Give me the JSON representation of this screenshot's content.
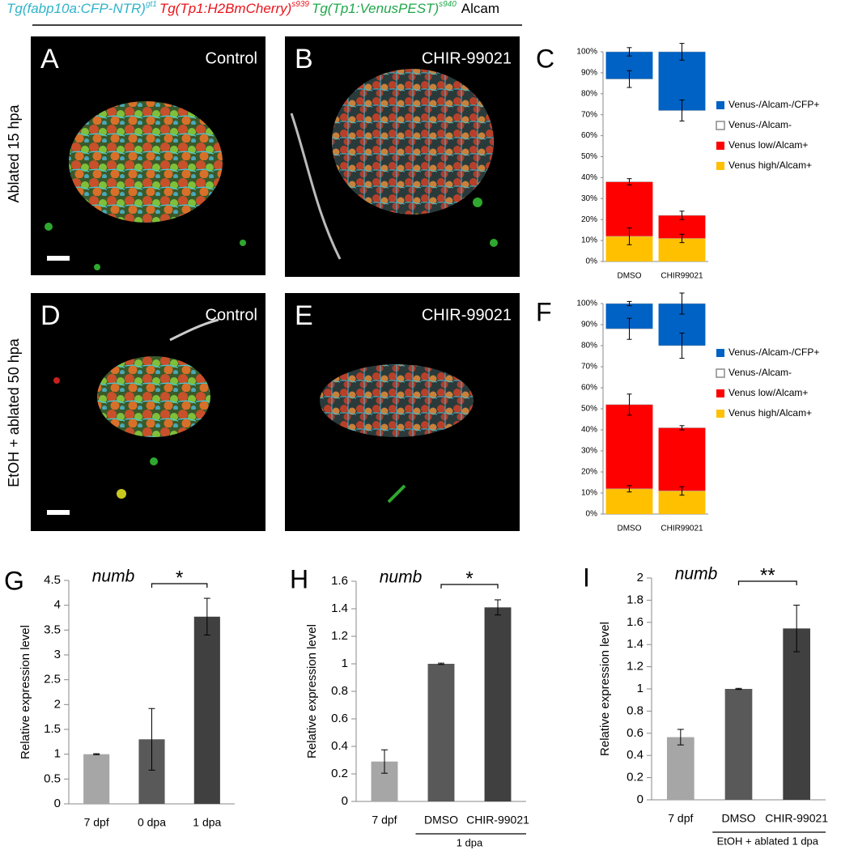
{
  "header": [
    {
      "text": "Tg(fabp10a:CFP-NTR)",
      "sup": "gt1",
      "color": "#2fb3c9"
    },
    {
      "text": "Tg(Tp1:H2BmCherry)",
      "sup": "s939",
      "color": "#e8141b"
    },
    {
      "text": "Tg(Tp1:VenusPEST)",
      "sup": "s940",
      "color": "#1fa84a"
    },
    {
      "text": "Alcam",
      "color": "#000000"
    }
  ],
  "images": [
    {
      "panel": "A",
      "label": "Control"
    },
    {
      "panel": "B",
      "label": "CHIR-99021"
    },
    {
      "panel": "D",
      "label": "Control"
    },
    {
      "panel": "E",
      "label": "CHIR-99021"
    }
  ],
  "rows": [
    "Ablated 15 hpa",
    "EtOH + ablated  50 hpa"
  ],
  "chart_data": [
    {
      "type": "stacked_bar",
      "panel": "C",
      "categories": [
        "DMSO",
        "CHIR99021"
      ],
      "ylim": [
        0,
        100
      ],
      "yticks": [
        {
          "value": 0,
          "label": "0%"
        },
        {
          "value": 10,
          "label": "10%"
        },
        {
          "value": 20,
          "label": "20%"
        },
        {
          "value": 30,
          "label": "30%"
        },
        {
          "value": 40,
          "label": "40%"
        },
        {
          "value": 50,
          "label": "50%"
        },
        {
          "value": 60,
          "label": "60%"
        },
        {
          "value": 70,
          "label": "70%"
        },
        {
          "value": 80,
          "label": "80%"
        },
        {
          "value": 90,
          "label": "90%"
        },
        {
          "value": 100,
          "label": "100%"
        }
      ],
      "series": [
        {
          "name": "Venus high/Alcam+",
          "color": "#ffc000",
          "values": [
            12,
            11
          ],
          "errors": [
            4,
            2
          ]
        },
        {
          "name": "Venus low/Alcam+",
          "color": "#ff0000",
          "values": [
            26,
            11
          ],
          "errors": [
            1.5,
            2
          ]
        },
        {
          "name": "Venus-/Alcam-",
          "color": "#ffffff",
          "edgecolor": "#8c8c8c",
          "values": [
            49,
            50
          ],
          "errors": [
            4,
            5
          ]
        },
        {
          "name": "Venus-/Alcam-/CFP+",
          "color": "#0062c4",
          "values": [
            13,
            28
          ],
          "errors": [
            2,
            4
          ]
        }
      ]
    },
    {
      "type": "stacked_bar",
      "panel": "F",
      "categories": [
        "DMSO",
        "CHIR99021"
      ],
      "ylim": [
        0,
        100
      ],
      "yticks": [
        {
          "value": 0,
          "label": "0%"
        },
        {
          "value": 10,
          "label": "10%"
        },
        {
          "value": 20,
          "label": "20%"
        },
        {
          "value": 30,
          "label": "30%"
        },
        {
          "value": 40,
          "label": "40%"
        },
        {
          "value": 50,
          "label": "50%"
        },
        {
          "value": 60,
          "label": "60%"
        },
        {
          "value": 70,
          "label": "70%"
        },
        {
          "value": 80,
          "label": "80%"
        },
        {
          "value": 90,
          "label": "90%"
        },
        {
          "value": 100,
          "label": "100%"
        }
      ],
      "series": [
        {
          "name": "Venus high/Alcam+",
          "color": "#ffc000",
          "values": [
            12,
            11
          ],
          "errors": [
            1.5,
            2
          ]
        },
        {
          "name": "Venus low/Alcam+",
          "color": "#ff0000",
          "values": [
            40,
            30
          ],
          "errors": [
            5,
            1
          ]
        },
        {
          "name": "Venus-/Alcam-",
          "color": "#ffffff",
          "edgecolor": "#8c8c8c",
          "values": [
            36,
            39
          ],
          "errors": [
            5,
            6
          ]
        },
        {
          "name": "Venus-/Alcam-/CFP+",
          "color": "#0062c4",
          "values": [
            12,
            20
          ],
          "errors": [
            1,
            5
          ]
        }
      ]
    },
    {
      "type": "bar",
      "panel": "G",
      "title": "numb",
      "ylabel": "Relative expression level",
      "categories": [
        "7 dpf",
        "0 dpa",
        "1 dpa"
      ],
      "values": [
        1,
        1.3,
        3.77
      ],
      "errors": [
        0.01,
        0.62,
        0.37
      ],
      "colors": [
        "#a6a6a6",
        "#595959",
        "#404040"
      ],
      "significance": "*",
      "ylim": [
        0,
        4.5
      ],
      "yticks": [
        0,
        0.5,
        1,
        1.5,
        2,
        2.5,
        3,
        3.5,
        4,
        4.5
      ]
    },
    {
      "type": "bar",
      "panel": "H",
      "title": "numb",
      "ylabel": "Relative expression level",
      "categories": [
        "7 dpf",
        "DMSO",
        "CHIR-99021"
      ],
      "values": [
        0.29,
        1.0,
        1.41
      ],
      "errors": [
        0.085,
        0.005,
        0.055
      ],
      "colors": [
        "#a6a6a6",
        "#595959",
        "#404040"
      ],
      "significance": "*",
      "group_label": "1 dpa",
      "ylim": [
        0,
        1.6
      ],
      "yticks": [
        0,
        0.2,
        0.4,
        0.6,
        0.8,
        1,
        1.2,
        1.4,
        1.6
      ]
    },
    {
      "type": "bar",
      "panel": "I",
      "title": "numb",
      "ylabel": "Relative expression level",
      "categories": [
        "7 dpf",
        "DMSO",
        "CHIR-99021"
      ],
      "values": [
        0.565,
        1.0,
        1.545
      ],
      "errors": [
        0.07,
        0.005,
        0.21
      ],
      "colors": [
        "#a6a6a6",
        "#595959",
        "#404040"
      ],
      "significance": "**",
      "group_label": "EtOH + ablated 1 dpa",
      "ylim": [
        0,
        2
      ],
      "yticks": [
        0,
        0.2,
        0.4,
        0.6,
        0.8,
        1,
        1.2,
        1.4,
        1.6,
        1.8,
        2
      ]
    }
  ]
}
